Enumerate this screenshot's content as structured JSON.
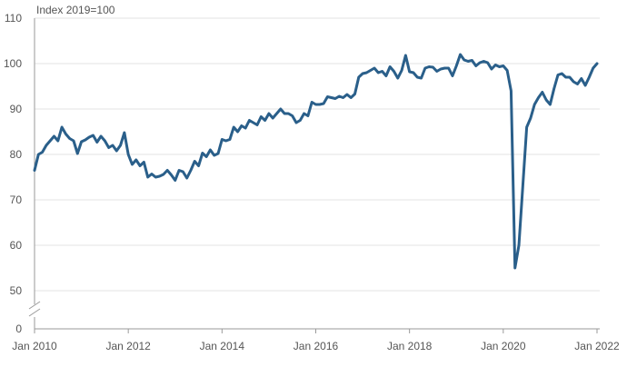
{
  "chart_data": {
    "type": "line",
    "unit_label": "Index 2019=100",
    "title": "",
    "xlabel": "",
    "ylabel": "",
    "grid": true,
    "axis_break": true,
    "ylim": [
      0,
      110
    ],
    "y_ticks": [
      0,
      50,
      60,
      70,
      80,
      90,
      100,
      110
    ],
    "x_start": "Jan 2010",
    "x_end": "Jan 2022",
    "x_tick_labels": [
      "Jan 2010",
      "Jan 2012",
      "Jan 2014",
      "Jan 2016",
      "Jan 2018",
      "Jan 2020",
      "Jan 2022"
    ],
    "colors": {
      "series": "#2a5f8a"
    },
    "series": [
      {
        "values": [
          76.5,
          80.0,
          80.5,
          82.0,
          83.0,
          84.0,
          83.0,
          86.0,
          84.5,
          83.5,
          83.0,
          80.2,
          82.8,
          83.2,
          83.8,
          84.2,
          82.7,
          84.0,
          83.0,
          81.5,
          82.0,
          80.8,
          82.0,
          84.8,
          80.0,
          77.8,
          78.8,
          77.5,
          78.3,
          75.0,
          75.7,
          75.0,
          75.2,
          75.6,
          76.5,
          75.5,
          74.3,
          76.5,
          76.2,
          74.8,
          76.5,
          78.5,
          77.5,
          80.3,
          79.5,
          81.0,
          79.8,
          80.2,
          83.3,
          83.0,
          83.3,
          86.0,
          85.0,
          86.3,
          85.8,
          87.5,
          87.0,
          86.5,
          88.3,
          87.5,
          89.0,
          88.0,
          89.0,
          90.0,
          89.0,
          89.0,
          88.5,
          87.0,
          87.5,
          89.0,
          88.5,
          91.5,
          91.0,
          91.0,
          91.2,
          92.7,
          92.5,
          92.3,
          92.8,
          92.5,
          93.2,
          92.5,
          93.3,
          97.0,
          97.8,
          98.0,
          98.5,
          99.0,
          98.0,
          98.3,
          97.3,
          99.3,
          98.3,
          96.8,
          98.5,
          101.8,
          98.2,
          98.0,
          97.0,
          96.8,
          99.0,
          99.3,
          99.2,
          98.3,
          98.8,
          99.0,
          99.0,
          97.3,
          99.5,
          102.0,
          100.8,
          100.5,
          100.7,
          99.5,
          100.2,
          100.5,
          100.2,
          98.8,
          99.7,
          99.3,
          99.5,
          98.5,
          94.0,
          55.0,
          60.0,
          73.0,
          86.0,
          88.0,
          91.0,
          92.5,
          93.7,
          92.0,
          91.0,
          94.5,
          97.5,
          97.8,
          97.0,
          97.0,
          96.0,
          95.5,
          96.7,
          95.2,
          97.0,
          99.0,
          100.0
        ]
      }
    ]
  }
}
